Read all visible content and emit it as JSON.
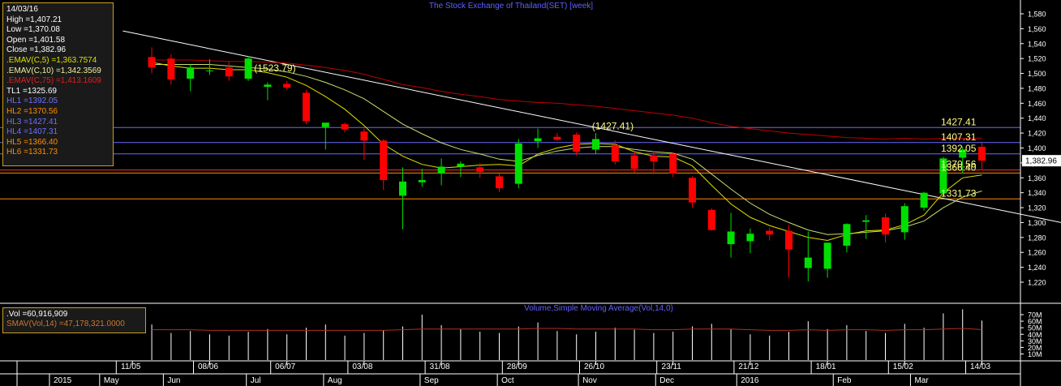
{
  "title": "The Stock Exchange of Thailand(SET) [week]",
  "info": {
    "date": "14/03/16",
    "high": "High  =1,407.21",
    "low": "Low  =1,370.08",
    "open": "Open  =1,401.58",
    "close": "Close  =1,382.96",
    "emav5": ".EMAV(C,5)   =1,363.7574",
    "emav10": ".EMAV(C,10)  =1,342.3569",
    "emav75": ".EMAV(C,75)  =1,413.1609",
    "tl1": "TL1 =1325.69",
    "hl1": "HL1 =1392.05",
    "hl2": "HL2 =1370.56",
    "hl3": "HL3 =1427.41",
    "hl4": "HL4 =1407.31",
    "hl5": "HL5 =1366.40",
    "hl6": "HL6 =1331.73"
  },
  "vol_info": {
    "vol": ".Vol   =60,916,909",
    "smav": "SMAV(Vol,14)   =47,178,321.0000"
  },
  "vol_title": "Volume,Simple Moving Average(Vol,14,0)",
  "last_price": "1,382.96",
  "colors": {
    "up": "#00e000",
    "down": "#ff0000",
    "ema5": "#e0e000",
    "ema10": "#c8e070",
    "ema75": "#c00000",
    "trend": "#ffffff",
    "hl_blue": "#6a6aff",
    "hl_red": "#ff3030",
    "hl_orange": "#ff8c00",
    "label_yellow": "#ffff80",
    "title": "#6060ff",
    "grid": "#2a2a2a"
  },
  "chart_data": {
    "type": "candlestick",
    "price_ylim": [
      1200,
      1590
    ],
    "price_ticks": [
      "1,580",
      "1,560",
      "1,540",
      "1,520",
      "1,500",
      "1,480",
      "1,460",
      "1,440",
      "1,420",
      "1,400",
      "1,380",
      "1,360",
      "1,340",
      "1,320",
      "1,300",
      "1,280",
      "1,260",
      "1,240",
      "1,220"
    ],
    "price_tick_values": [
      1580,
      1560,
      1540,
      1520,
      1500,
      1480,
      1460,
      1440,
      1420,
      1400,
      1380,
      1360,
      1340,
      1320,
      1300,
      1280,
      1260,
      1240,
      1220
    ],
    "volume_ticks": [
      "70M",
      "60M",
      "50M",
      "40M",
      "30M",
      "20M",
      "10M"
    ],
    "volume_tick_values": [
      70,
      60,
      50,
      40,
      30,
      20,
      10
    ],
    "volume_ylim": [
      0,
      80
    ],
    "x_date_labels": [
      "11/05",
      "08/06",
      "06/07",
      "03/08",
      "31/08",
      "28/09",
      "26/10",
      "23/11",
      "21/12",
      "18/01",
      "15/02",
      "14/03"
    ],
    "x_date_index": [
      1,
      5,
      9,
      13,
      17,
      21,
      25,
      29,
      33,
      37,
      41,
      45
    ],
    "x_month_labels": [
      "2015",
      "May",
      "Jun",
      "Jul",
      "Aug",
      "Sep",
      "Oct",
      "Nov",
      "Dec",
      "2016",
      "Feb",
      "Mar"
    ],
    "x_month_index": [
      -3.3,
      -0.7,
      2.6,
      6.9,
      10.9,
      15.9,
      19.9,
      24.1,
      28.1,
      32.3,
      37.3,
      41.3
    ],
    "candles": [
      {
        "o": 1522,
        "h": 1535,
        "l": 1500,
        "c": 1508
      },
      {
        "o": 1520,
        "h": 1526,
        "l": 1485,
        "c": 1492
      },
      {
        "o": 1493,
        "h": 1512,
        "l": 1476,
        "c": 1508
      },
      {
        "o": 1503,
        "h": 1519,
        "l": 1498,
        "c": 1504
      },
      {
        "o": 1508,
        "h": 1516,
        "l": 1490,
        "c": 1496
      },
      {
        "o": 1493,
        "h": 1523,
        "l": 1490,
        "c": 1520
      },
      {
        "o": 1482,
        "h": 1488,
        "l": 1464,
        "c": 1485
      },
      {
        "o": 1486,
        "h": 1490,
        "l": 1478,
        "c": 1481
      },
      {
        "o": 1474,
        "h": 1478,
        "l": 1432,
        "c": 1436
      },
      {
        "o": 1428,
        "h": 1433,
        "l": 1398,
        "c": 1434
      },
      {
        "o": 1432,
        "h": 1434,
        "l": 1421,
        "c": 1425
      },
      {
        "o": 1422,
        "h": 1426,
        "l": 1384,
        "c": 1410
      },
      {
        "o": 1410,
        "h": 1412,
        "l": 1344,
        "c": 1357
      },
      {
        "o": 1336,
        "h": 1374,
        "l": 1291,
        "c": 1355
      },
      {
        "o": 1354,
        "h": 1372,
        "l": 1348,
        "c": 1357
      },
      {
        "o": 1366,
        "h": 1386,
        "l": 1350,
        "c": 1375
      },
      {
        "o": 1375,
        "h": 1382,
        "l": 1361,
        "c": 1379
      },
      {
        "o": 1374,
        "h": 1380,
        "l": 1360,
        "c": 1368
      },
      {
        "o": 1362,
        "h": 1366,
        "l": 1341,
        "c": 1346
      },
      {
        "o": 1352,
        "h": 1412,
        "l": 1346,
        "c": 1406
      },
      {
        "o": 1409,
        "h": 1426,
        "l": 1400,
        "c": 1413
      },
      {
        "o": 1415,
        "h": 1420,
        "l": 1410,
        "c": 1411
      },
      {
        "o": 1418,
        "h": 1421,
        "l": 1390,
        "c": 1395
      },
      {
        "o": 1398,
        "h": 1420,
        "l": 1392,
        "c": 1412
      },
      {
        "o": 1404,
        "h": 1410,
        "l": 1378,
        "c": 1382
      },
      {
        "o": 1390,
        "h": 1395,
        "l": 1367,
        "c": 1372
      },
      {
        "o": 1390,
        "h": 1395,
        "l": 1365,
        "c": 1382
      },
      {
        "o": 1392,
        "h": 1394,
        "l": 1361,
        "c": 1366
      },
      {
        "o": 1360,
        "h": 1362,
        "l": 1320,
        "c": 1327
      },
      {
        "o": 1317,
        "h": 1319,
        "l": 1289,
        "c": 1290
      },
      {
        "o": 1271,
        "h": 1313,
        "l": 1253,
        "c": 1288
      },
      {
        "o": 1275,
        "h": 1292,
        "l": 1259,
        "c": 1285
      },
      {
        "o": 1289,
        "h": 1293,
        "l": 1276,
        "c": 1284
      },
      {
        "o": 1289,
        "h": 1297,
        "l": 1226,
        "c": 1264
      },
      {
        "o": 1239,
        "h": 1288,
        "l": 1221,
        "c": 1253
      },
      {
        "o": 1238,
        "h": 1272,
        "l": 1226,
        "c": 1273
      },
      {
        "o": 1269,
        "h": 1299,
        "l": 1260,
        "c": 1298
      },
      {
        "o": 1301,
        "h": 1310,
        "l": 1278,
        "c": 1303
      },
      {
        "o": 1307,
        "h": 1312,
        "l": 1273,
        "c": 1284
      },
      {
        "o": 1287,
        "h": 1326,
        "l": 1277,
        "c": 1322
      },
      {
        "o": 1320,
        "h": 1341,
        "l": 1316,
        "c": 1340
      },
      {
        "o": 1339,
        "h": 1388,
        "l": 1334,
        "c": 1386
      },
      {
        "o": 1387,
        "h": 1402,
        "l": 1366,
        "c": 1398
      },
      {
        "o": 1401.58,
        "h": 1407.21,
        "l": 1370.08,
        "c": 1382.96
      }
    ],
    "candle_start_index": 2,
    "ema5": [
      1515,
      1510,
      1507,
      1507,
      1505,
      1505,
      1501,
      1495,
      1484,
      1469,
      1452,
      1430,
      1405,
      1389,
      1378,
      1373,
      1375,
      1377,
      1378,
      1376,
      1392,
      1400,
      1405,
      1406,
      1405,
      1395,
      1389,
      1388,
      1376,
      1350,
      1325,
      1307,
      1296,
      1288,
      1280,
      1276,
      1284,
      1289,
      1290,
      1297,
      1310,
      1340,
      1360,
      1363.76
    ],
    "ema10": [
      1512,
      1512,
      1512,
      1512,
      1510,
      1508,
      1506,
      1502,
      1496,
      1488,
      1478,
      1466,
      1449,
      1432,
      1419,
      1407,
      1398,
      1392,
      1385,
      1382,
      1390,
      1396,
      1400,
      1402,
      1402,
      1398,
      1395,
      1393,
      1385,
      1365,
      1345,
      1326,
      1311,
      1300,
      1290,
      1284,
      1285,
      1287,
      1289,
      1294,
      1302,
      1320,
      1334,
      1342.36
    ],
    "ema75": [
      1518,
      1518,
      1518,
      1517,
      1516,
      1516,
      1515,
      1514,
      1511,
      1508,
      1504,
      1499,
      1492,
      1485,
      1481,
      1476,
      1472,
      1469,
      1465,
      1463,
      1461,
      1460,
      1458,
      1456,
      1453,
      1450,
      1447,
      1444,
      1440,
      1434,
      1429,
      1426,
      1423,
      1420,
      1418,
      1416,
      1414,
      1413,
      1412,
      1413,
      1412,
      1413,
      1413,
      1413.16
    ],
    "trendline": {
      "i1": 0.5,
      "v1": 1557,
      "i2": 49.5,
      "v2": 1298
    },
    "hlines": [
      {
        "name": "HL3",
        "value": 1427.41,
        "label": "1427.41",
        "color": "#6a6aff"
      },
      {
        "name": "HL4",
        "value": 1407.31,
        "label": "1407.31",
        "color": "#6a6aff"
      },
      {
        "name": "HL1",
        "value": 1392.05,
        "label": "1392.05",
        "color": "#6a6aff"
      },
      {
        "name": "HL2",
        "value": 1370.56,
        "label": "1370.56",
        "color": "#ff3030"
      },
      {
        "name": "HL5",
        "value": 1366.4,
        "label": "1366.40",
        "color": "#ff8c00"
      },
      {
        "name": "HL6",
        "value": 1331.73,
        "label": "1331.73",
        "color": "#ff8c00"
      }
    ],
    "annotations": [
      {
        "text": "(1523.79)",
        "i": 7.3,
        "v": 1503
      },
      {
        "text": "(1427.41)",
        "i": 24.8,
        "v": 1425
      }
    ],
    "volume": [
      55,
      42,
      45,
      40,
      38,
      44,
      48,
      40,
      50,
      55,
      38,
      42,
      46,
      52,
      70,
      54,
      48,
      44,
      42,
      52,
      58,
      45,
      40,
      44,
      50,
      47,
      42,
      44,
      52,
      56,
      48,
      40,
      38,
      44,
      60,
      48,
      54,
      45,
      42,
      56,
      50,
      72,
      78,
      60.9
    ],
    "volume_sma": [
      47,
      47,
      47,
      46,
      46,
      46,
      46,
      46,
      46,
      46,
      46,
      46,
      46,
      47,
      48,
      48,
      48,
      48,
      48,
      48,
      49,
      49,
      48,
      48,
      48,
      48,
      47,
      47,
      48,
      48,
      48,
      47,
      46,
      46,
      47,
      46,
      47,
      47,
      46,
      47,
      47,
      48,
      49,
      47.18
    ]
  }
}
